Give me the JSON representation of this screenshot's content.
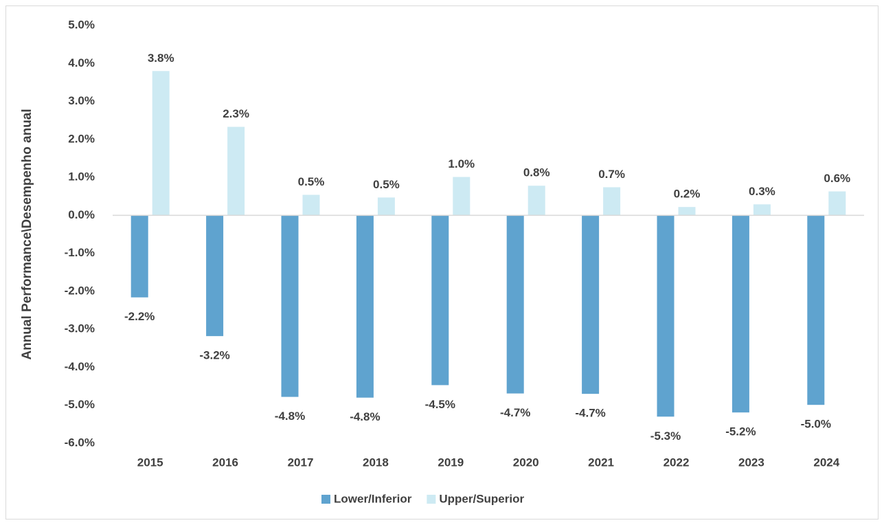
{
  "chart_data": {
    "type": "bar",
    "y_axis_label": "Annual Performance\\Desempenho anual",
    "categories": [
      "2015",
      "2016",
      "2017",
      "2018",
      "2019",
      "2020",
      "2021",
      "2022",
      "2023",
      "2024"
    ],
    "series": [
      {
        "name": "Lower/Inferior",
        "color": "#5fa3cf",
        "values": [
          -2.16,
          -3.18,
          -4.78,
          -4.8,
          -4.47,
          -4.69,
          -4.7,
          -5.3,
          -5.19,
          -4.99
        ],
        "value_labels": [
          "-2.2%",
          "-3.2%",
          "-4.8%",
          "-4.8%",
          "-4.5%",
          "-4.7%",
          "-4.7%",
          "-5.3%",
          "-5.2%",
          "-5.0%"
        ]
      },
      {
        "name": "Upper/Superior",
        "color": "#cdeaf3",
        "values": [
          3.8,
          2.33,
          0.54,
          0.47,
          1.01,
          0.78,
          0.74,
          0.22,
          0.29,
          0.63
        ],
        "value_labels": [
          "3.8%",
          "2.3%",
          "0.5%",
          "0.5%",
          "1.0%",
          "0.8%",
          "0.7%",
          "0.2%",
          "0.3%",
          "0.6%"
        ]
      }
    ],
    "ylim": [
      -6,
      5
    ],
    "yticks": [
      {
        "value": -6,
        "label": "-6.0%"
      },
      {
        "value": -5,
        "label": "-5.0%"
      },
      {
        "value": -4,
        "label": "-4.0%"
      },
      {
        "value": -3,
        "label": "-3.0%"
      },
      {
        "value": -2,
        "label": "-2.0%"
      },
      {
        "value": -1,
        "label": "-1.0%"
      },
      {
        "value": 0,
        "label": "0.0%"
      },
      {
        "value": 1,
        "label": "1.0%"
      },
      {
        "value": 2,
        "label": "2.0%"
      },
      {
        "value": 3,
        "label": "3.0%"
      },
      {
        "value": 4,
        "label": "4.0%"
      },
      {
        "value": 5,
        "label": "5.0%"
      }
    ],
    "grid": false,
    "legend": "bottom"
  }
}
